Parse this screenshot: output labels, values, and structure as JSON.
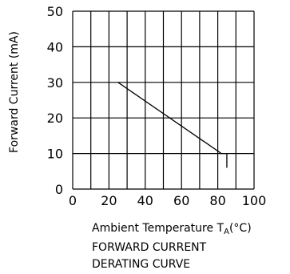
{
  "chart_data": {
    "type": "line",
    "title_lines": [
      "FORWARD CURRENT",
      "DERATING CURVE"
    ],
    "xlabel_main": "Ambient Temperature T",
    "xlabel_sub": "A",
    "xlabel_unit": "(°C)",
    "ylabel": "Forward Current (mA)",
    "xlim": [
      0,
      100
    ],
    "ylim": [
      0,
      50
    ],
    "x_ticks": [
      0,
      20,
      40,
      60,
      80,
      100
    ],
    "y_ticks": [
      0,
      10,
      20,
      30,
      40,
      50
    ],
    "x_grid_step": 10,
    "y_grid_step": 10,
    "grid": true,
    "series": [
      {
        "x": [
          25,
          82,
          85,
          85
        ],
        "y": [
          30,
          10,
          10,
          6
        ]
      }
    ]
  }
}
